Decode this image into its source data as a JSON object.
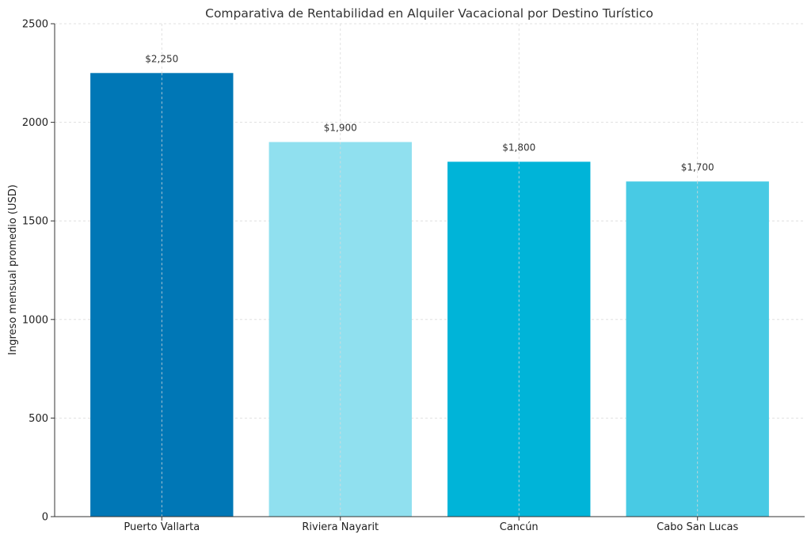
{
  "chart_data": {
    "type": "bar",
    "title": "Comparativa de Rentabilidad en Alquiler Vacacional por Destino Turístico",
    "xlabel": "",
    "ylabel": "Ingreso mensual promedio (USD)",
    "categories": [
      "Puerto Vallarta",
      "Riviera Nayarit",
      "Cancún",
      "Cabo San Lucas"
    ],
    "values": [
      2250,
      1900,
      1800,
      1700
    ],
    "data_labels": [
      "$2,250",
      "$1,900",
      "$1,800",
      "$1,700"
    ],
    "colors": [
      "#0077b6",
      "#90e0ef",
      "#00b4d8",
      "#48cae4"
    ],
    "ylim": [
      0,
      2500
    ],
    "yticks": [
      0,
      500,
      1000,
      1500,
      2000,
      2500
    ],
    "grid": true
  }
}
